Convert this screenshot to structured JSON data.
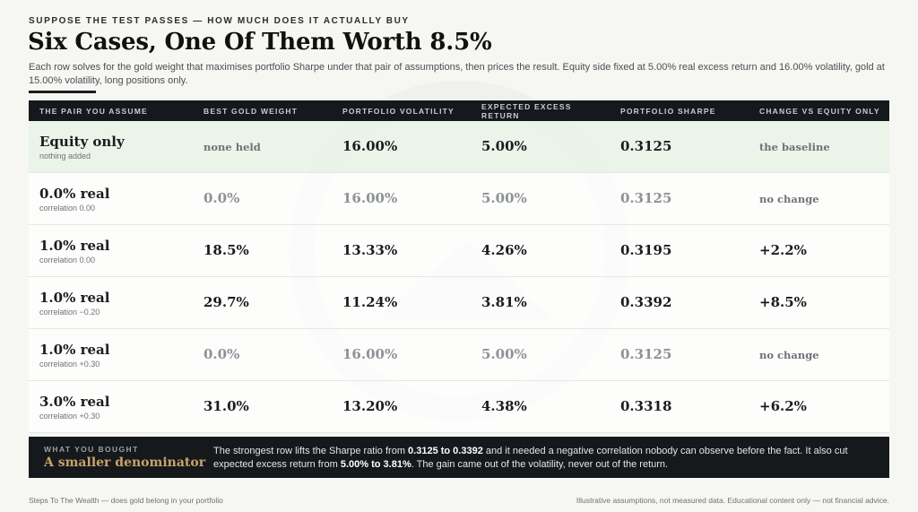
{
  "header": {
    "kicker": "SUPPOSE THE TEST PASSES — HOW MUCH DOES IT ACTUALLY BUY",
    "title": "Six Cases, One Of Them Worth 8.5%",
    "description": "Each row solves for the gold weight that maximises portfolio Sharpe under that pair of assumptions, then prices the result. Equity side fixed at 5.00% real excess return and 16.00% volatility, gold at 15.00% volatility, long positions only."
  },
  "table": {
    "columns": [
      "THE PAIR YOU ASSUME",
      "BEST GOLD WEIGHT",
      "PORTFOLIO VOLATILITY",
      "EXPECTED EXCESS RETURN",
      "PORTFOLIO SHARPE",
      "CHANGE VS EQUITY ONLY"
    ],
    "rows": [
      {
        "name": "Equity only",
        "sub": "nothing added",
        "weight": "none held",
        "vol": "16.00%",
        "ret": "5.00%",
        "sharpe": "0.3125",
        "change": "the baseline"
      },
      {
        "name": "0.0% real",
        "sub": "correlation 0.00",
        "weight": "0.0%",
        "vol": "16.00%",
        "ret": "5.00%",
        "sharpe": "0.3125",
        "change": "no change"
      },
      {
        "name": "1.0% real",
        "sub": "correlation 0.00",
        "weight": "18.5%",
        "vol": "13.33%",
        "ret": "4.26%",
        "sharpe": "0.3195",
        "change": "+2.2%"
      },
      {
        "name": "1.0% real",
        "sub": "correlation −0.20",
        "weight": "29.7%",
        "vol": "11.24%",
        "ret": "3.81%",
        "sharpe": "0.3392",
        "change": "+8.5%"
      },
      {
        "name": "1.0% real",
        "sub": "correlation +0.30",
        "weight": "0.0%",
        "vol": "16.00%",
        "ret": "5.00%",
        "sharpe": "0.3125",
        "change": "no change"
      },
      {
        "name": "3.0% real",
        "sub": "correlation +0.30",
        "weight": "31.0%",
        "vol": "13.20%",
        "ret": "4.38%",
        "sharpe": "0.3318",
        "change": "+6.2%"
      }
    ]
  },
  "summary": {
    "label": "WHAT YOU BOUGHT",
    "heading": "A smaller denominator",
    "t1": "The strongest row lifts the Sharpe ratio from ",
    "b1": "0.3125 to 0.3392",
    "t2": " and it needed a negative correlation nobody can observe before the fact. It also cut expected excess return from ",
    "b2": "5.00% to 3.81%",
    "t3": ". The gain came out of the volatility, never out of the return."
  },
  "footer": {
    "left": "Steps To The Wealth — does gold belong in your portfolio",
    "right": "Illustrative assumptions, not measured data. Educational content only — not financial advice."
  },
  "colors": {
    "header_bg": "#15191c",
    "accent_gold": "#c9a36a",
    "baseline_row": "#e8f3e6"
  },
  "watermark": {
    "icon": "steps-to-the-wealth-seal"
  }
}
